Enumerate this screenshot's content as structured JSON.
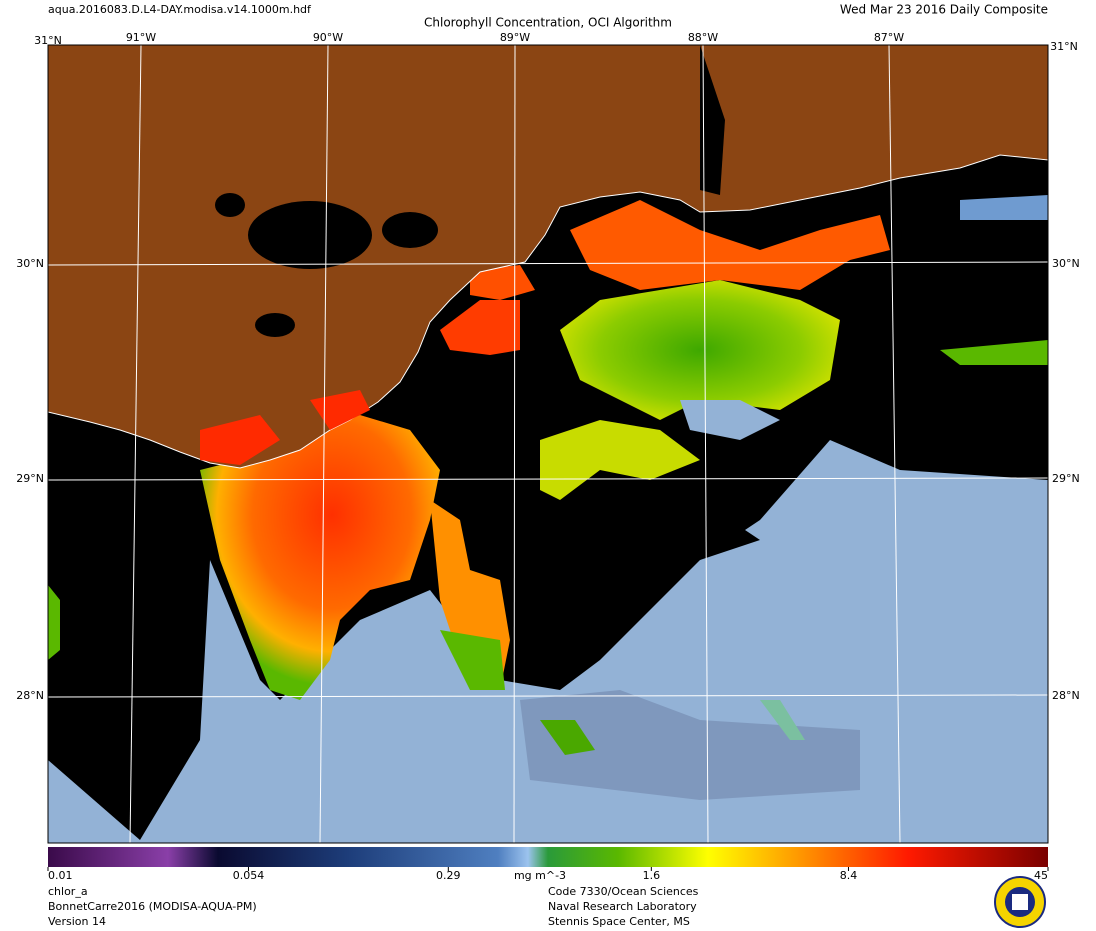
{
  "header": {
    "filename": "aqua.2016083.D.L4-DAY.modisa.v14.1000m.hdf",
    "title": "Chlorophyll Concentration, OCI Algorithm",
    "date": "Wed Mar 23 2016 Daily Composite"
  },
  "map": {
    "corner_lat": "31°N",
    "lon_labels": [
      "91°W",
      "90°W",
      "89°W",
      "88°W",
      "87°W"
    ],
    "lat_labels": [
      "30°N",
      "29°N",
      "28°N"
    ]
  },
  "colorbar": {
    "ticks": [
      0.01,
      0.054,
      0.29,
      1.6,
      8.4,
      45
    ],
    "unit": "mg m^-3",
    "log": true
  },
  "footer": {
    "left": [
      "chlor_a",
      "BonnetCarre2016 (MODISA-AQUA-PM)",
      "Version 14"
    ],
    "right": [
      "Code 7330/Ocean Sciences",
      "Naval Research Laboratory",
      "Stennis Space Center, MS"
    ]
  }
}
